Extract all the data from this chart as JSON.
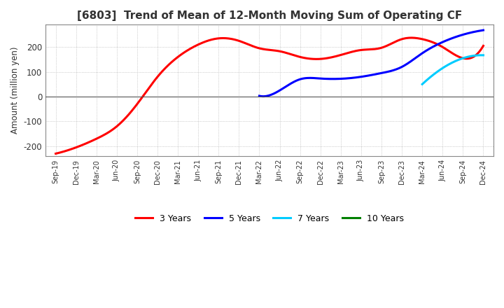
{
  "title": "[6803]  Trend of Mean of 12-Month Moving Sum of Operating CF",
  "ylabel": "Amount (million yen)",
  "ylim": [
    -240,
    290
  ],
  "yticks": [
    -200,
    -100,
    0,
    100,
    200
  ],
  "line_colors": {
    "3y": "#ff0000",
    "5y": "#0000ff",
    "7y": "#00ccff",
    "10y": "#008000"
  },
  "legend_labels": [
    "3 Years",
    "5 Years",
    "7 Years",
    "10 Years"
  ],
  "x_labels": [
    "Sep-19",
    "Dec-19",
    "Mar-20",
    "Jun-20",
    "Sep-20",
    "Dec-20",
    "Mar-21",
    "Jun-21",
    "Sep-21",
    "Dec-21",
    "Mar-22",
    "Jun-22",
    "Sep-22",
    "Dec-22",
    "Mar-23",
    "Jun-23",
    "Sep-23",
    "Dec-23",
    "Mar-24",
    "Jun-24",
    "Sep-24",
    "Dec-24"
  ],
  "data_3y": [
    -230,
    -205,
    -170,
    -120,
    -30,
    80,
    160,
    210,
    235,
    225,
    195,
    183,
    160,
    152,
    168,
    188,
    197,
    232,
    232,
    200,
    155,
    205
  ],
  "data_5y": [
    null,
    null,
    null,
    null,
    null,
    null,
    null,
    null,
    null,
    null,
    3,
    25,
    70,
    73,
    72,
    80,
    95,
    120,
    175,
    220,
    250,
    268
  ],
  "data_7y": [
    null,
    null,
    null,
    null,
    null,
    null,
    null,
    null,
    null,
    null,
    null,
    null,
    null,
    null,
    null,
    null,
    null,
    null,
    50,
    115,
    155,
    167
  ],
  "data_10y": [
    null,
    null,
    null,
    null,
    null,
    null,
    null,
    null,
    null,
    null,
    null,
    null,
    null,
    null,
    null,
    null,
    null,
    null,
    null,
    null,
    null,
    null
  ],
  "background_color": "#ffffff",
  "grid_color": "#aaaaaa",
  "frame_color": "#888888"
}
